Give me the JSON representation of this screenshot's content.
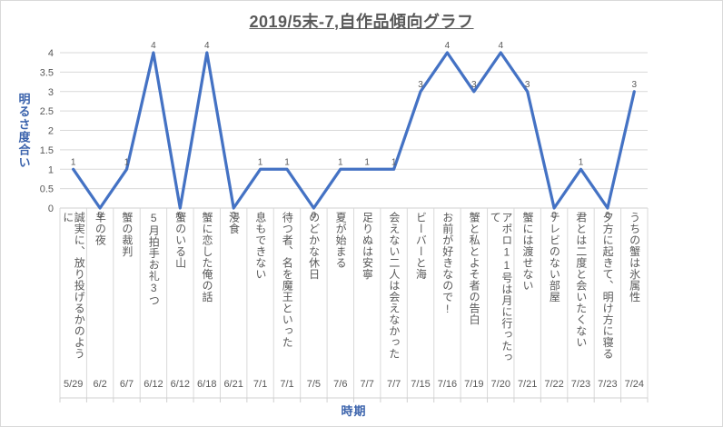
{
  "title": "2019/5末-7,自作品傾向グラフ",
  "colors": {
    "line": "#4472C4",
    "axis_title": "#3B63AC",
    "text": "#595959",
    "gridline": "#D9D9D9",
    "axis_line": "#D0D0D0",
    "border": "#D9D9D9"
  },
  "chart_data": {
    "type": "line",
    "title": "2019/5末-7,自作品傾向グラフ",
    "xlabel": "時期",
    "ylabel": "明るさ度合い",
    "ylim": [
      0,
      4
    ],
    "ytick_step": 0.5,
    "grid": true,
    "legend": "none",
    "categories": [
      "5/29",
      "6/2",
      "6/7",
      "6/12",
      "6/12",
      "6/18",
      "6/21",
      "7/1",
      "7/1",
      "7/5",
      "7/6",
      "7/7",
      "7/7",
      "7/15",
      "7/16",
      "7/19",
      "7/20",
      "7/21",
      "7/22",
      "7/23",
      "7/23",
      "7/24"
    ],
    "point_labels": [
      "誠実に、放り投げるかのように",
      "羊の夜",
      "蟹の裁判",
      "5月拍手お礼3つ",
      "蟹のいる山",
      "蟹に恋した俺の話",
      "浸食",
      "息もできない",
      "待つ者、名を魔王といった",
      "のどかな休日",
      "夏が始まる",
      "足りぬは安寧",
      "会えない二人は会えなかった",
      "ビーバーと海",
      "お前が好きなので!",
      "蟹と私とよそ者の告白",
      "アポロ11号は月に行ったって",
      "蟹には渡せない",
      "テレビのない部屋",
      "君とは二度と会いたくない",
      "夕方に起きて、明け方に寝る",
      "うちの蟹は氷属性"
    ],
    "values": [
      1,
      0,
      1,
      4,
      0,
      4,
      0,
      1,
      1,
      0,
      1,
      1,
      1,
      3,
      4,
      3,
      4,
      3,
      0,
      1,
      0,
      3
    ]
  }
}
